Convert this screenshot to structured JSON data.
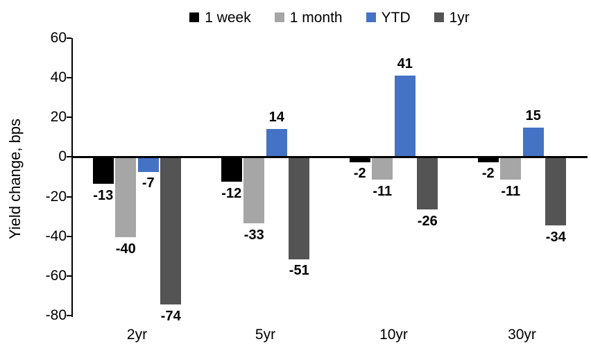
{
  "chart_data": {
    "type": "bar",
    "title": "",
    "xlabel": "",
    "ylabel": "Yield change, bps",
    "categories": [
      "2yr",
      "5yr",
      "10yr",
      "30yr"
    ],
    "series": [
      {
        "name": "1 week",
        "color": "#000000",
        "values": [
          -13,
          -12,
          -2,
          -2
        ]
      },
      {
        "name": "1 month",
        "color": "#a6a6a6",
        "values": [
          -40,
          -33,
          -11,
          -11
        ]
      },
      {
        "name": "YTD",
        "color": "#4472c4",
        "values": [
          -7,
          14,
          41,
          15
        ]
      },
      {
        "name": "1yr",
        "color": "#545454",
        "values": [
          -74,
          -51,
          -26,
          -34
        ]
      }
    ],
    "ylim": [
      -80,
      60
    ],
    "yticks": [
      60,
      40,
      20,
      0,
      -20,
      -40,
      -60,
      -80
    ],
    "grid": false,
    "legend_position": "top",
    "data_labels": "outside-end",
    "background_color": "#ffffff",
    "axis_color": "#000000"
  }
}
